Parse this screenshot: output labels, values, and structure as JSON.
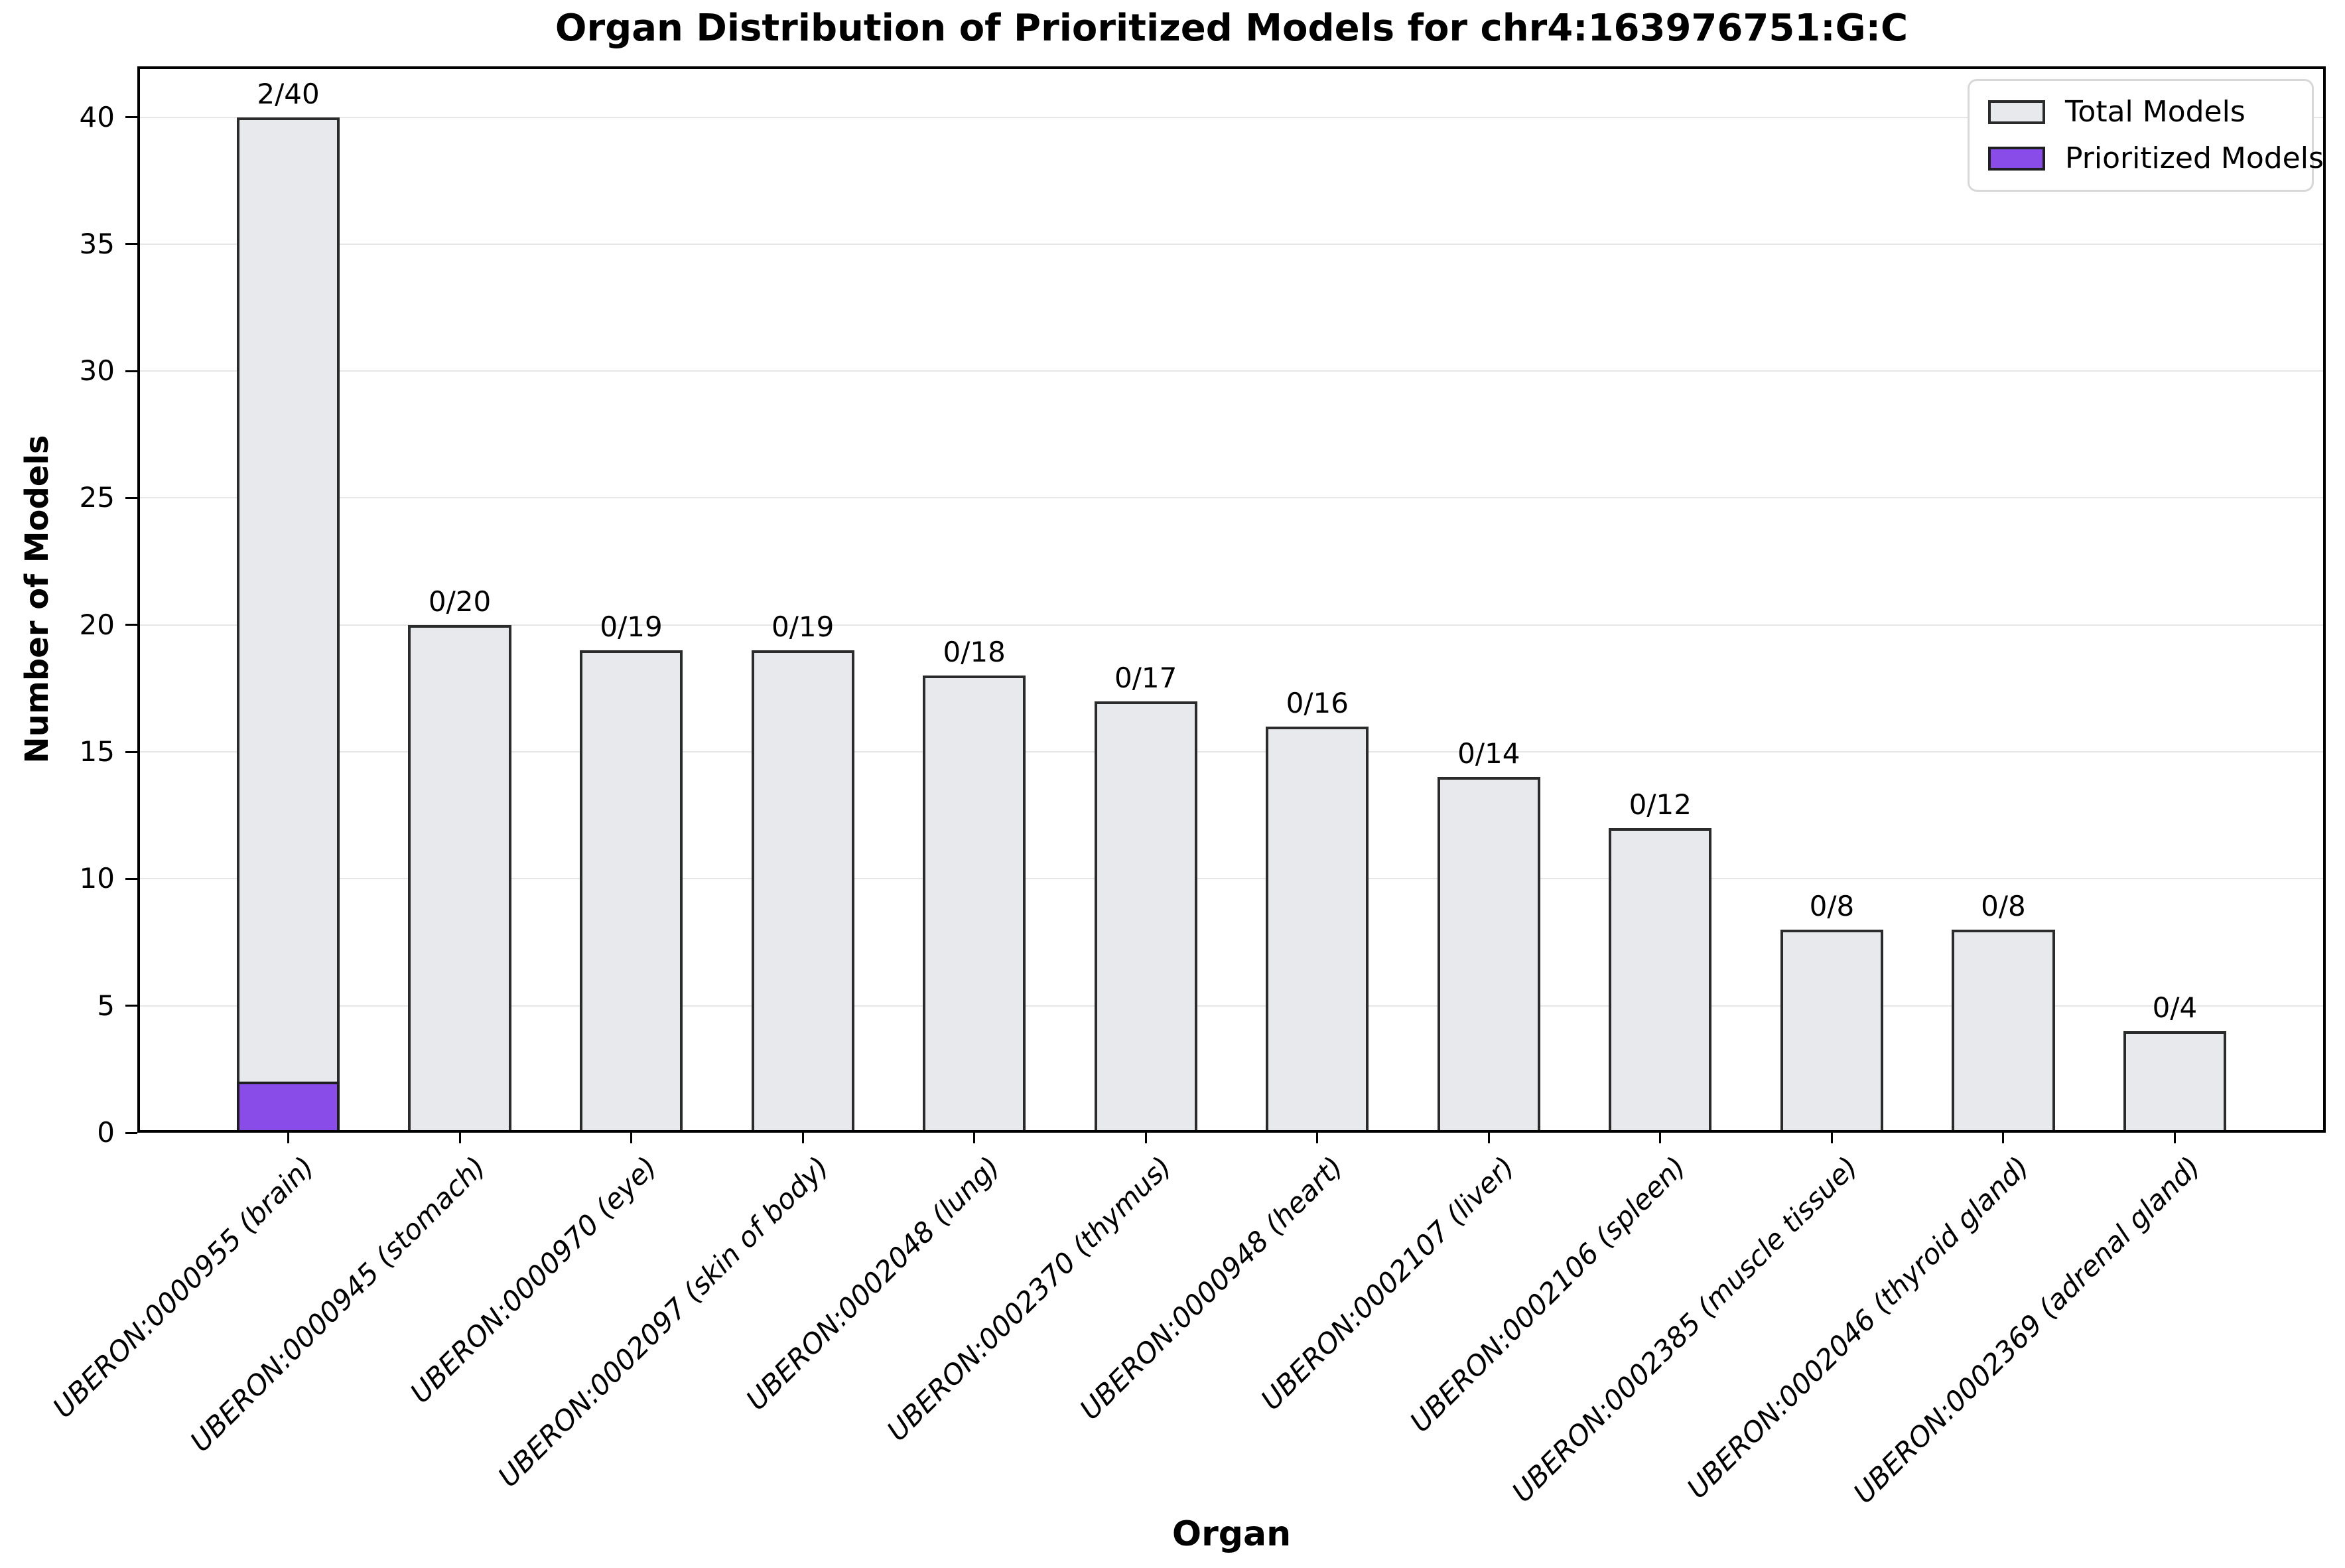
{
  "chart_data": {
    "type": "bar",
    "title": "Organ Distribution of Prioritized Models for chr4:163976751:G:C",
    "xlabel": "Organ",
    "ylabel": "Number of Models",
    "ylim": [
      0,
      42
    ],
    "yticks": [
      0,
      5,
      10,
      15,
      20,
      25,
      30,
      35,
      40
    ],
    "grid": "horizontal",
    "legend_position": "upper right",
    "categories": [
      "UBERON:0000955 (brain)",
      "UBERON:0000945 (stomach)",
      "UBERON:0000970 (eye)",
      "UBERON:0002097 (skin of body)",
      "UBERON:0002048 (lung)",
      "UBERON:0002370 (thymus)",
      "UBERON:0000948 (heart)",
      "UBERON:0002107 (liver)",
      "UBERON:0002106 (spleen)",
      "UBERON:0002385 (muscle tissue)",
      "UBERON:0002046 (thyroid gland)",
      "UBERON:0002369 (adrenal gland)"
    ],
    "series": [
      {
        "name": "Total Models",
        "values": [
          40,
          20,
          19,
          19,
          18,
          17,
          16,
          14,
          12,
          8,
          8,
          4
        ],
        "fill": "#e8e9ed",
        "edge": "#2b2b2b"
      },
      {
        "name": "Prioritized Models",
        "values": [
          2,
          0,
          0,
          0,
          0,
          0,
          0,
          0,
          0,
          0,
          0,
          0
        ],
        "fill": "#8a4ce8",
        "edge": "#1f1f1f"
      }
    ],
    "bar_labels": [
      "2/40",
      "0/20",
      "0/19",
      "0/19",
      "0/18",
      "0/17",
      "0/16",
      "0/14",
      "0/12",
      "0/8",
      "0/8",
      "0/4"
    ],
    "legend": [
      {
        "label": "Total Models",
        "color": "#e8e9ed",
        "edge": "#2b2b2b"
      },
      {
        "label": "Prioritized Models",
        "color": "#8a4ce8",
        "edge": "#1f1f1f"
      }
    ],
    "colors": {
      "grid": "#e6e6e6",
      "spine": "#000000",
      "background": "#ffffff"
    }
  }
}
